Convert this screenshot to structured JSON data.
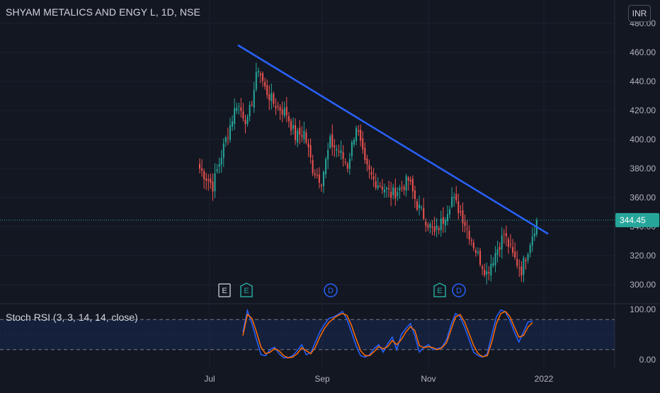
{
  "header": {
    "title": "SHYAM METALICS AND ENGY L, 1D, NSE",
    "currency": "INR"
  },
  "price_badge": "344.45",
  "indicator": {
    "title": "Stoch RSI (3, 3, 14, 14, close)",
    "ticks": [
      "100.00",
      "0.00"
    ]
  },
  "events": [
    {
      "label": "E",
      "style": "square-grey"
    },
    {
      "label": "E",
      "style": "flag-green"
    },
    {
      "label": "D",
      "style": "circle-blue"
    },
    {
      "label": "E",
      "style": "flag-green"
    },
    {
      "label": "D",
      "style": "circle-blue"
    }
  ],
  "colors": {
    "background": "#131722",
    "up": "#26a69a",
    "down": "#ef5350",
    "trendline": "#2962ff",
    "stoch_k": "#2962ff",
    "stoch_d": "#ff6d00",
    "badge": "#26a69a"
  },
  "chart_data": [
    {
      "type": "candlestick",
      "title": "SHYAM METALICS AND ENGY L, 1D, NSE",
      "ylim": [
        292,
        482
      ],
      "y_ticks": [
        "300.00",
        "320.00",
        "340.00",
        "360.00",
        "380.00",
        "400.00",
        "420.00",
        "440.00",
        "460.00",
        "480.00"
      ],
      "x_ticks": [
        "Jul",
        "Sep",
        "Nov",
        "2022"
      ],
      "last_price": 344.45,
      "trendline": [
        [
          465,
          463
        ],
        [
          335,
          327
        ]
      ],
      "anchors": [
        {
          "i": 0,
          "c": 380
        },
        {
          "i": 6,
          "c": 368
        },
        {
          "i": 12,
          "c": 400
        },
        {
          "i": 17,
          "c": 425
        },
        {
          "i": 22,
          "c": 412
        },
        {
          "i": 27,
          "c": 450
        },
        {
          "i": 30,
          "c": 435
        },
        {
          "i": 34,
          "c": 425
        },
        {
          "i": 40,
          "c": 418
        },
        {
          "i": 44,
          "c": 402
        },
        {
          "i": 48,
          "c": 405
        },
        {
          "i": 52,
          "c": 380
        },
        {
          "i": 56,
          "c": 372
        },
        {
          "i": 60,
          "c": 398
        },
        {
          "i": 64,
          "c": 392
        },
        {
          "i": 68,
          "c": 382
        },
        {
          "i": 72,
          "c": 410
        },
        {
          "i": 76,
          "c": 382
        },
        {
          "i": 80,
          "c": 372
        },
        {
          "i": 84,
          "c": 368
        },
        {
          "i": 88,
          "c": 362
        },
        {
          "i": 92,
          "c": 366
        },
        {
          "i": 96,
          "c": 372
        },
        {
          "i": 100,
          "c": 355
        },
        {
          "i": 104,
          "c": 345
        },
        {
          "i": 108,
          "c": 335
        },
        {
          "i": 112,
          "c": 345
        },
        {
          "i": 116,
          "c": 360
        },
        {
          "i": 120,
          "c": 350
        },
        {
          "i": 124,
          "c": 335
        },
        {
          "i": 128,
          "c": 320
        },
        {
          "i": 132,
          "c": 308
        },
        {
          "i": 136,
          "c": 322
        },
        {
          "i": 140,
          "c": 335
        },
        {
          "i": 144,
          "c": 320
        },
        {
          "i": 148,
          "c": 310
        },
        {
          "i": 152,
          "c": 330
        },
        {
          "i": 155,
          "c": 344.45
        }
      ]
    },
    {
      "type": "line",
      "title": "Stoch RSI (3, 3, 14, 14, close)",
      "ylim": [
        0,
        100
      ],
      "bands": [
        20,
        80
      ],
      "series": [
        {
          "name": "K",
          "values": [
            55,
            98,
            72,
            40,
            10,
            8,
            20,
            25,
            12,
            4,
            4,
            8,
            18,
            30,
            10,
            14,
            35,
            55,
            70,
            82,
            85,
            90,
            96,
            80,
            55,
            28,
            8,
            5,
            10,
            22,
            30,
            15,
            32,
            45,
            20,
            50,
            62,
            72,
            48,
            15,
            25,
            30,
            20,
            22,
            25,
            40,
            70,
            92,
            85,
            65,
            40,
            15,
            8,
            5,
            12,
            50,
            85,
            99,
            95,
            78,
            55,
            35,
            55,
            75,
            77
          ]
        },
        {
          "name": "D",
          "values": [
            48,
            90,
            82,
            55,
            25,
            12,
            15,
            22,
            18,
            8,
            4,
            5,
            12,
            24,
            18,
            12,
            25,
            45,
            62,
            74,
            82,
            88,
            92,
            88,
            68,
            42,
            18,
            8,
            8,
            16,
            26,
            22,
            26,
            38,
            30,
            40,
            55,
            66,
            58,
            28,
            24,
            26,
            24,
            20,
            24,
            34,
            60,
            85,
            90,
            75,
            52,
            28,
            12,
            6,
            8,
            35,
            72,
            92,
            96,
            86,
            65,
            45,
            48,
            65,
            74
          ]
        }
      ]
    }
  ]
}
